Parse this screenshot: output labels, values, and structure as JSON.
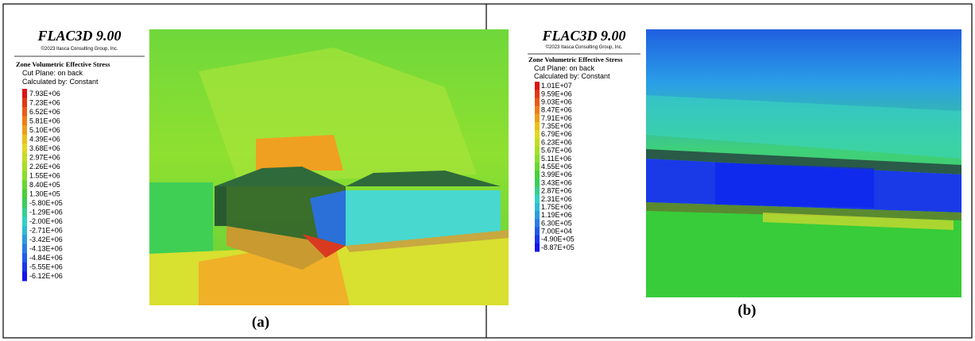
{
  "panels": [
    {
      "title": "FLAC3D 9.00",
      "copyright": "©2023 Itasca Consulting Group, Inc.",
      "quantity": "Zone Volumetric Effective Stress",
      "cut_plane": "Cut Plane: on back",
      "calculated_by": "Calculated by: Constant",
      "legend": [
        "7.93E+06",
        "7.23E+06",
        "6.52E+06",
        "5.81E+06",
        "5.10E+06",
        "4.39E+06",
        "3.68E+06",
        "2.97E+06",
        "2.26E+06",
        "1.55E+06",
        "8.40E+05",
        "1.30E+05",
        "-5.80E+05",
        "-1.29E+06",
        "-2.00E+06",
        "-2.71E+06",
        "-3.42E+06",
        "-4.13E+06",
        "-4.84E+06",
        "-5.55E+06",
        "-6.12E+06"
      ],
      "caption": "(a)"
    },
    {
      "title": "FLAC3D 9.00",
      "copyright": "©2023 Itasca Consulting Group, Inc.",
      "quantity": "Zone Volumetric Effective Stress",
      "cut_plane": "Cut Plane: on back",
      "calculated_by": "Calculated by: Constant",
      "legend": [
        "1.01E+07",
        "9.59E+06",
        "9.03E+06",
        "8.47E+06",
        "7.91E+06",
        "7.35E+06",
        "6.79E+06",
        "6.23E+06",
        "5.67E+06",
        "5.11E+06",
        "4.55E+06",
        "3.99E+06",
        "3.43E+06",
        "2.87E+06",
        "2.31E+06",
        "1.75E+06",
        "1.19E+06",
        "6.30E+05",
        "7.00E+04",
        "-4.90E+05",
        "-8.87E+05"
      ],
      "caption": "(b)"
    }
  ]
}
